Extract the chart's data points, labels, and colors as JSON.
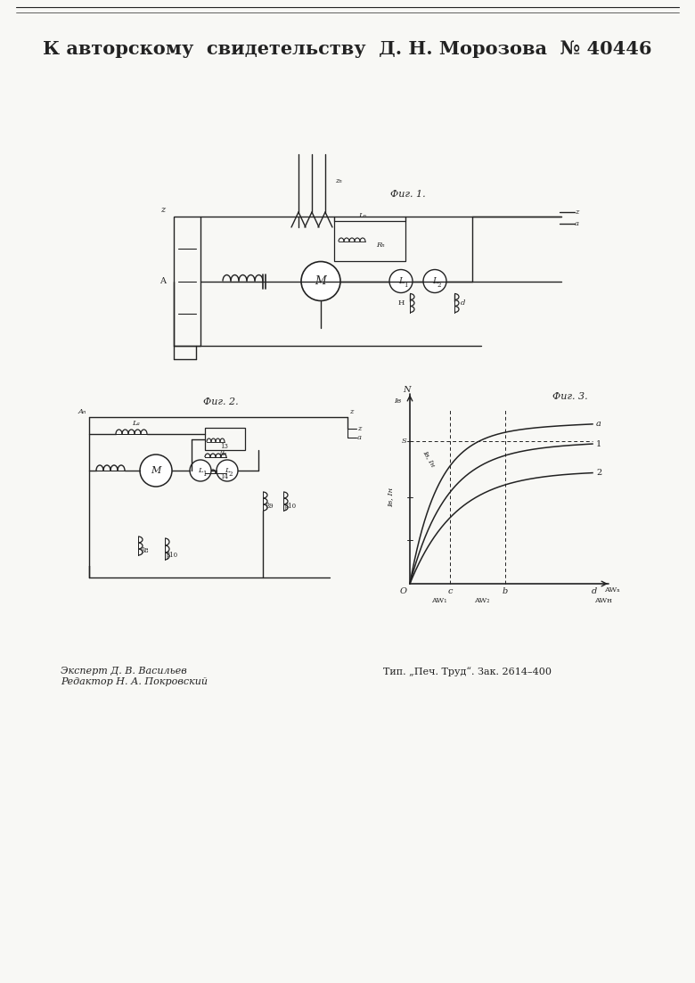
{
  "bg_color": "#f8f8f5",
  "title": "К авторскому  свидетельству  Д. Н. Морозова  № 40446",
  "fig1_label": "Фиг. 1.",
  "fig2_label": "Фиг. 2.",
  "fig3_label": "Фиг. 3.",
  "bottom_left": "Эксперт Д. В. Васильев\nРедактор Н. А. Покровский",
  "bottom_right": "Тип. „Печ. Труд“. Зак. 2614–400"
}
